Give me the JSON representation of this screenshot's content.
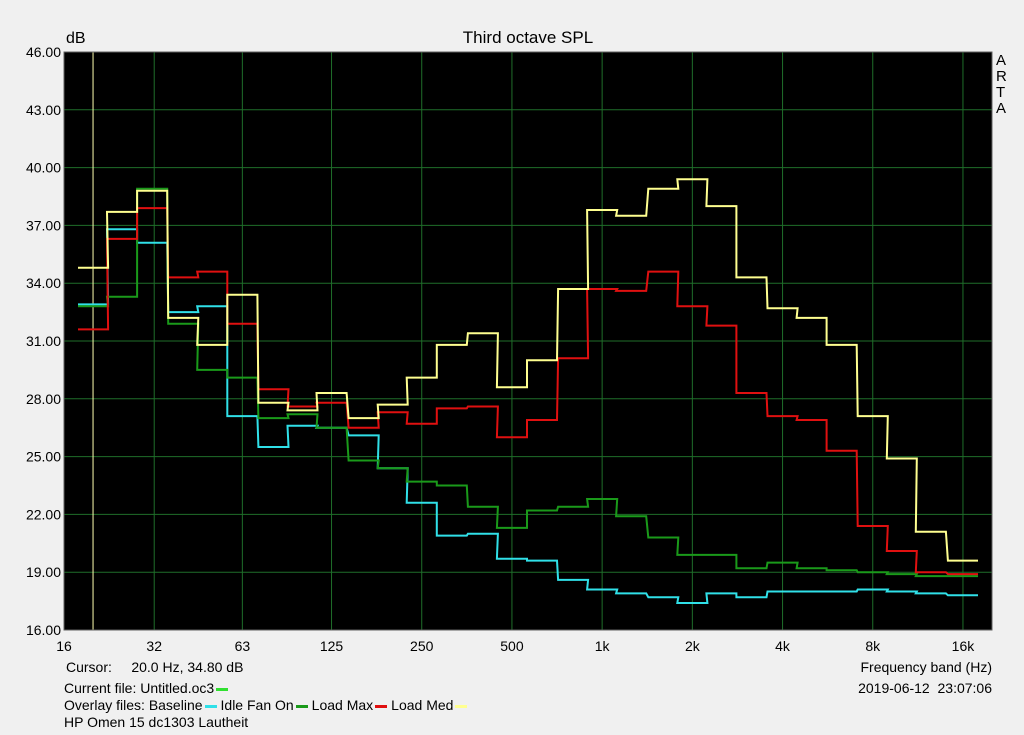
{
  "chart_data": {
    "type": "line",
    "title": "Third octave SPL",
    "ylabel": "dB",
    "xlabel": "Frequency band (Hz)",
    "ylim": [
      16,
      46
    ],
    "yticks": [
      "16.00",
      "19.00",
      "22.00",
      "25.00",
      "28.00",
      "31.00",
      "34.00",
      "37.00",
      "40.00",
      "43.00",
      "46.00"
    ],
    "xticks": [
      {
        "label": "16",
        "hz": 16
      },
      {
        "label": "32",
        "hz": 32
      },
      {
        "label": "63",
        "hz": 63
      },
      {
        "label": "125",
        "hz": 125
      },
      {
        "label": "250",
        "hz": 250
      },
      {
        "label": "500",
        "hz": 500
      },
      {
        "label": "1k",
        "hz": 1000
      },
      {
        "label": "2k",
        "hz": 2000
      },
      {
        "label": "4k",
        "hz": 4000
      },
      {
        "label": "8k",
        "hz": 8000
      },
      {
        "label": "16k",
        "hz": 16000
      }
    ],
    "x_scale": "log",
    "xlim_hz": [
      16,
      20000
    ],
    "grid": true,
    "cursor_hz": 20,
    "bands_hz": [
      20,
      25,
      31.5,
      40,
      50,
      63,
      80,
      100,
      125,
      160,
      200,
      250,
      315,
      400,
      500,
      630,
      800,
      1000,
      1250,
      1600,
      2000,
      2500,
      3150,
      4000,
      5000,
      6300,
      8000,
      10000,
      12500,
      16000
    ],
    "series": [
      {
        "name": "Baseline",
        "color": "#30e0e8",
        "values": [
          32.9,
          36.8,
          36.1,
          32.5,
          32.8,
          27.1,
          25.5,
          26.6,
          26.5,
          26.1,
          24.4,
          22.6,
          20.9,
          21.0,
          19.7,
          19.6,
          18.6,
          18.1,
          17.9,
          17.7,
          17.4,
          17.9,
          17.7,
          18.0,
          18.0,
          18.0,
          18.1,
          18.0,
          17.9,
          17.8
        ]
      },
      {
        "name": "Idle Fan On",
        "color": "#1a9a1a",
        "values": [
          32.8,
          33.3,
          38.9,
          31.9,
          29.5,
          29.1,
          27.0,
          27.2,
          26.5,
          24.8,
          24.4,
          23.7,
          23.5,
          22.4,
          21.3,
          22.2,
          22.4,
          22.8,
          21.9,
          20.8,
          19.9,
          19.9,
          19.2,
          19.5,
          19.2,
          19.1,
          19.0,
          18.9,
          18.8,
          18.8
        ]
      },
      {
        "name": "Load Max",
        "color": "#e01010",
        "values": [
          31.6,
          36.3,
          37.9,
          34.3,
          34.6,
          31.9,
          28.5,
          27.6,
          27.8,
          26.5,
          27.3,
          26.7,
          27.5,
          27.6,
          26.0,
          26.9,
          30.1,
          33.7,
          33.6,
          34.6,
          32.8,
          31.8,
          28.3,
          27.1,
          26.9,
          25.3,
          21.4,
          20.1,
          19.0,
          18.9
        ]
      },
      {
        "name": "Load Med",
        "color": "#ffff90",
        "values": [
          34.8,
          37.7,
          38.8,
          32.2,
          30.8,
          33.4,
          27.8,
          27.4,
          28.3,
          27.0,
          27.7,
          29.1,
          30.8,
          31.4,
          28.6,
          30.0,
          33.7,
          37.8,
          37.5,
          38.9,
          39.4,
          38.0,
          34.3,
          32.7,
          32.2,
          30.8,
          27.1,
          24.9,
          21.1,
          19.6
        ]
      }
    ]
  },
  "side_label": [
    "A",
    "R",
    "T",
    "A"
  ],
  "cursor_text": "Cursor:     20.0 Hz, 34.80 dB",
  "freq_band_label": "Frequency band (Hz)",
  "current_file_text": "Current file: Untitled.oc3",
  "current_file_color": "#30e030",
  "datetime_text": "2019-06-12  23:07:06",
  "overlay_prefix": "Overlay files: ",
  "overlay_items": [
    {
      "name": "Baseline",
      "color": "#30e0e8"
    },
    {
      "name": "Idle Fan On",
      "color": "#1a9a1a"
    },
    {
      "name": "Load Max",
      "color": "#e01010"
    },
    {
      "name": "Load Med",
      "color": "#ffff90"
    }
  ],
  "caption": "HP Omen 15 dc1303 Lautheit"
}
